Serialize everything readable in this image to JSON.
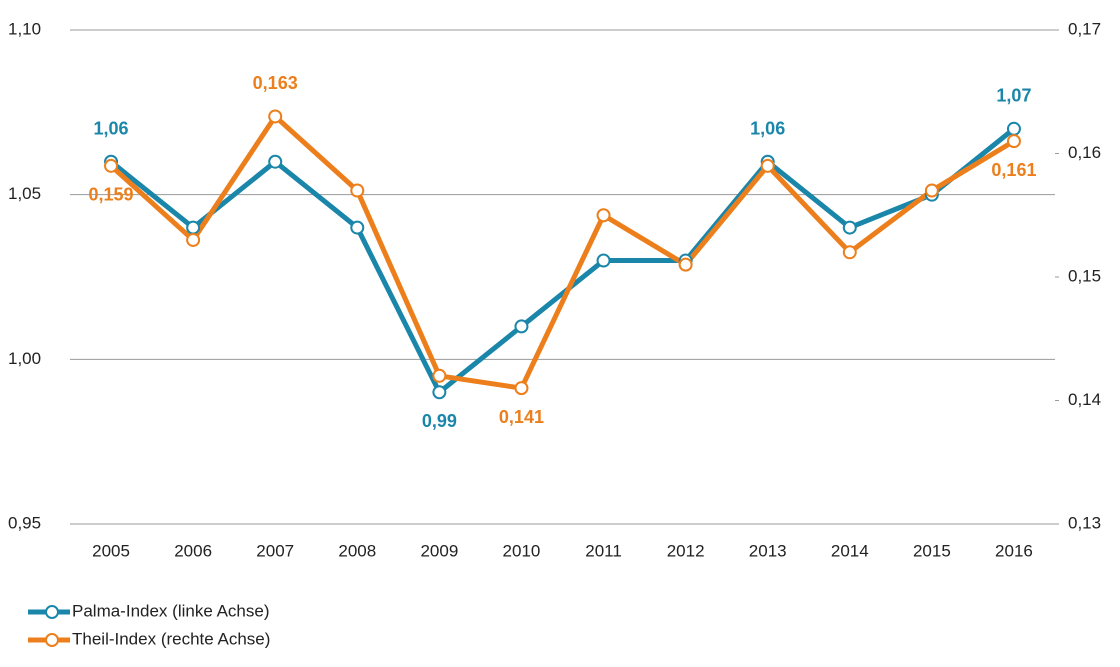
{
  "chart_data": {
    "type": "line",
    "categories": [
      "2005",
      "2006",
      "2007",
      "2008",
      "2009",
      "2010",
      "2011",
      "2012",
      "2013",
      "2014",
      "2015",
      "2016"
    ],
    "series": [
      {
        "name": "Palma-Index (linke Achse)",
        "color": "#1a86a9",
        "values": [
          1.06,
          1.04,
          1.06,
          1.04,
          0.99,
          1.01,
          1.03,
          1.03,
          1.06,
          1.04,
          1.05,
          1.07
        ],
        "value_labels": [
          "1,06",
          null,
          null,
          null,
          "0,99",
          null,
          null,
          null,
          "1,06",
          null,
          null,
          "1,07"
        ]
      },
      {
        "name": "Theil-Index (rechte Achse)",
        "color": "#ec7f1c",
        "axis": "y2",
        "values": [
          0.159,
          0.153,
          0.163,
          0.157,
          0.142,
          0.141,
          0.155,
          0.151,
          0.159,
          0.152,
          0.157,
          0.161
        ],
        "value_labels": [
          "0,159",
          null,
          "0,163",
          null,
          null,
          "0,141",
          null,
          null,
          null,
          null,
          null,
          "0,161"
        ]
      }
    ],
    "ylim": [
      0.95,
      1.1
    ],
    "yticks": [
      {
        "value": 0.95,
        "label": "0,95"
      },
      {
        "value": 1.0,
        "label": "1,00"
      },
      {
        "value": 1.05,
        "label": "1,05"
      },
      {
        "value": 1.1,
        "label": "1,10"
      }
    ],
    "y2lim": [
      0.13,
      0.17
    ],
    "y2ticks": [
      {
        "value": 0.13,
        "label": "0,13"
      },
      {
        "value": 0.14,
        "label": "0,14"
      },
      {
        "value": 0.15,
        "label": "0,15"
      },
      {
        "value": 0.16,
        "label": "0,16"
      },
      {
        "value": 0.17,
        "label": "0,17"
      }
    ],
    "grid": true,
    "legend": "bottom-left"
  }
}
